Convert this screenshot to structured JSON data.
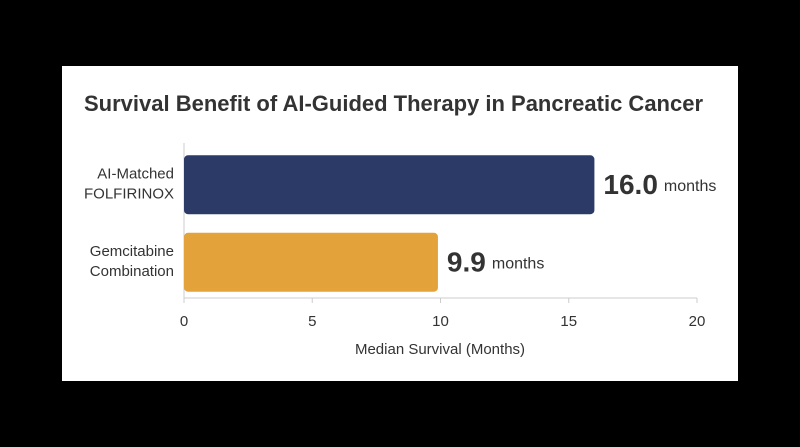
{
  "chart_data": {
    "type": "bar",
    "orientation": "horizontal",
    "title": "Survival Benefit of AI-Guided Therapy in Pancreatic Cancer",
    "categories": [
      [
        "AI-Matched",
        "FOLFIRINOX"
      ],
      [
        "Gemcitabine",
        "Combination"
      ]
    ],
    "values": [
      16.0,
      9.9
    ],
    "value_labels": [
      "16.0",
      "9.9"
    ],
    "value_unit": "months",
    "colors": [
      "#2b3a67",
      "#e3a23a"
    ],
    "xlabel": "Median Survival (Months)",
    "xlim": [
      0,
      20
    ],
    "xticks": [
      0,
      5,
      10,
      15,
      20
    ],
    "grid": false
  }
}
